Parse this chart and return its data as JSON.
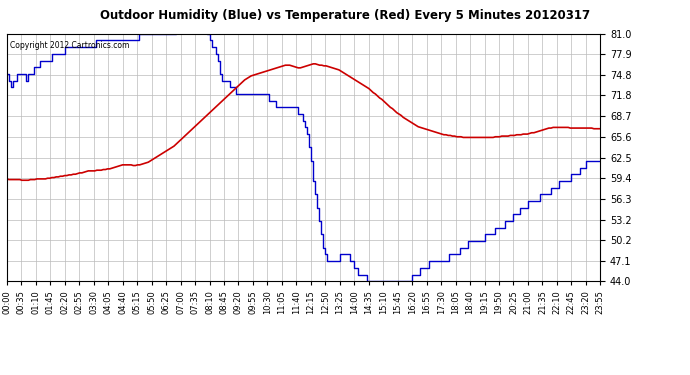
{
  "title": "Outdoor Humidity (Blue) vs Temperature (Red) Every 5 Minutes 20120317",
  "copyright": "Copyright 2012 Cartronics.com",
  "bg_color": "#ffffff",
  "plot_bg_color": "#ffffff",
  "grid_color": "#bbbbbb",
  "ymin": 44.0,
  "ymax": 81.0,
  "yticks": [
    44.0,
    47.1,
    50.2,
    53.2,
    56.3,
    59.4,
    62.5,
    65.6,
    68.7,
    71.8,
    74.8,
    77.9,
    81.0
  ],
  "humidity_color": "#0000cc",
  "temperature_color": "#cc0000",
  "humidity_data": [
    75,
    74,
    73,
    74,
    74,
    75,
    75,
    75,
    75,
    74,
    75,
    75,
    75,
    76,
    76,
    76,
    77,
    77,
    77,
    77,
    77,
    77,
    78,
    78,
    78,
    78,
    78,
    78,
    79,
    79,
    79,
    79,
    79,
    79,
    79,
    79,
    79,
    79,
    79,
    79,
    79,
    79,
    79,
    80,
    80,
    80,
    80,
    80,
    80,
    80,
    80,
    80,
    80,
    80,
    80,
    80,
    80,
    80,
    80,
    80,
    80,
    80,
    80,
    80,
    81,
    81,
    81,
    81,
    81,
    81,
    81,
    81,
    81,
    81,
    81,
    81,
    81,
    81,
    81,
    81,
    81,
    81,
    82,
    82,
    82,
    83,
    83,
    83,
    83,
    83,
    83,
    83,
    82,
    82,
    82,
    82,
    82,
    81,
    80,
    79,
    79,
    78,
    77,
    75,
    74,
    74,
    74,
    74,
    73,
    73,
    73,
    72,
    72,
    72,
    72,
    72,
    72,
    72,
    72,
    72,
    72,
    72,
    72,
    72,
    72,
    72,
    72,
    71,
    71,
    71,
    70,
    70,
    70,
    70,
    70,
    70,
    70,
    70,
    70,
    70,
    70,
    69,
    69,
    68,
    67,
    66,
    64,
    62,
    59,
    57,
    55,
    53,
    51,
    49,
    48,
    47,
    47,
    47,
    47,
    47,
    47,
    48,
    48,
    48,
    48,
    48,
    47,
    47,
    46,
    46,
    45,
    45,
    45,
    45,
    44,
    44,
    44,
    44,
    44,
    44,
    44,
    44,
    44,
    44,
    44,
    44,
    44,
    44,
    44,
    44,
    44,
    44,
    44,
    44,
    44,
    44,
    45,
    45,
    45,
    45,
    46,
    46,
    46,
    46,
    47,
    47,
    47,
    47,
    47,
    47,
    47,
    47,
    47,
    47,
    48,
    48,
    48,
    48,
    48,
    49,
    49,
    49,
    49,
    50,
    50,
    50,
    50,
    50,
    50,
    50,
    50,
    51,
    51,
    51,
    51,
    51,
    52,
    52,
    52,
    52,
    52,
    53,
    53,
    53,
    53,
    54,
    54,
    54,
    55,
    55,
    55,
    55,
    56,
    56,
    56,
    56,
    56,
    56,
    57,
    57,
    57,
    57,
    57,
    58,
    58,
    58,
    58,
    59,
    59,
    59,
    59,
    59,
    59,
    60,
    60,
    60,
    60,
    61,
    61,
    61,
    62,
    62,
    62,
    62,
    62,
    62,
    62,
    62
  ],
  "temperature_data": [
    59.3,
    59.2,
    59.2,
    59.2,
    59.2,
    59.2,
    59.2,
    59.1,
    59.1,
    59.1,
    59.1,
    59.2,
    59.2,
    59.2,
    59.3,
    59.3,
    59.3,
    59.3,
    59.3,
    59.4,
    59.4,
    59.5,
    59.5,
    59.6,
    59.6,
    59.7,
    59.7,
    59.8,
    59.8,
    59.9,
    59.9,
    60.0,
    60.0,
    60.1,
    60.2,
    60.2,
    60.3,
    60.4,
    60.5,
    60.5,
    60.5,
    60.5,
    60.6,
    60.6,
    60.6,
    60.7,
    60.7,
    60.8,
    60.8,
    60.9,
    61.0,
    61.1,
    61.2,
    61.3,
    61.4,
    61.4,
    61.4,
    61.4,
    61.4,
    61.3,
    61.3,
    61.4,
    61.4,
    61.5,
    61.6,
    61.7,
    61.8,
    62.0,
    62.2,
    62.4,
    62.6,
    62.8,
    63.0,
    63.2,
    63.4,
    63.6,
    63.8,
    64.0,
    64.2,
    64.5,
    64.8,
    65.1,
    65.4,
    65.7,
    66.0,
    66.3,
    66.6,
    66.9,
    67.2,
    67.5,
    67.8,
    68.1,
    68.4,
    68.7,
    69.0,
    69.3,
    69.6,
    69.9,
    70.2,
    70.5,
    70.8,
    71.1,
    71.4,
    71.7,
    72.0,
    72.3,
    72.6,
    72.9,
    73.2,
    73.5,
    73.8,
    74.1,
    74.3,
    74.5,
    74.7,
    74.8,
    74.9,
    75.0,
    75.1,
    75.2,
    75.3,
    75.4,
    75.5,
    75.6,
    75.7,
    75.8,
    75.9,
    76.0,
    76.1,
    76.2,
    76.3,
    76.3,
    76.3,
    76.2,
    76.1,
    76.0,
    75.9,
    75.9,
    76.0,
    76.1,
    76.2,
    76.3,
    76.4,
    76.5,
    76.5,
    76.4,
    76.3,
    76.3,
    76.2,
    76.2,
    76.1,
    76.0,
    75.9,
    75.8,
    75.7,
    75.6,
    75.4,
    75.2,
    75.0,
    74.8,
    74.6,
    74.4,
    74.2,
    74.0,
    73.8,
    73.6,
    73.4,
    73.2,
    73.0,
    72.8,
    72.5,
    72.2,
    72.0,
    71.7,
    71.4,
    71.2,
    70.9,
    70.6,
    70.3,
    70.0,
    69.8,
    69.5,
    69.2,
    69.0,
    68.8,
    68.5,
    68.3,
    68.1,
    67.9,
    67.7,
    67.5,
    67.3,
    67.1,
    67.0,
    66.9,
    66.8,
    66.7,
    66.6,
    66.5,
    66.4,
    66.3,
    66.2,
    66.1,
    66.0,
    65.9,
    65.9,
    65.8,
    65.8,
    65.7,
    65.7,
    65.6,
    65.6,
    65.6,
    65.5,
    65.5,
    65.5,
    65.5,
    65.5,
    65.5,
    65.5,
    65.5,
    65.5,
    65.5,
    65.5,
    65.5,
    65.5,
    65.5,
    65.5,
    65.6,
    65.6,
    65.6,
    65.7,
    65.7,
    65.7,
    65.7,
    65.8,
    65.8,
    65.8,
    65.9,
    65.9,
    65.9,
    66.0,
    66.0,
    66.0,
    66.1,
    66.2,
    66.2,
    66.3,
    66.4,
    66.5,
    66.6,
    66.7,
    66.8,
    66.9,
    66.9,
    67.0,
    67.0,
    67.0,
    67.0,
    67.0,
    67.0,
    67.0,
    67.0,
    66.9,
    66.9,
    66.9,
    66.9,
    66.9,
    66.9,
    66.9,
    66.9,
    66.9,
    66.9,
    66.9,
    66.8,
    66.8,
    66.8,
    66.8
  ],
  "x_tick_labels": [
    "00:00",
    "00:35",
    "01:10",
    "01:45",
    "02:20",
    "02:55",
    "03:30",
    "04:05",
    "04:40",
    "05:15",
    "05:50",
    "06:25",
    "07:00",
    "07:35",
    "08:10",
    "08:45",
    "09:20",
    "09:55",
    "10:30",
    "11:05",
    "11:40",
    "12:15",
    "12:50",
    "13:25",
    "14:00",
    "14:35",
    "15:10",
    "15:45",
    "16:20",
    "16:55",
    "17:30",
    "18:05",
    "18:40",
    "19:15",
    "19:50",
    "20:25",
    "21:00",
    "21:35",
    "22:10",
    "22:45",
    "23:20",
    "23:55"
  ],
  "figwidth": 6.9,
  "figheight": 3.75,
  "dpi": 100
}
